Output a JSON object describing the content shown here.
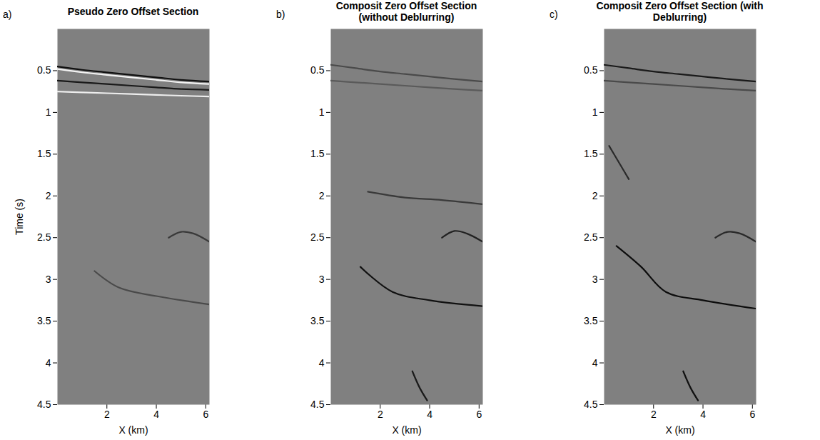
{
  "chart_data": [
    {
      "type": "line",
      "panel_label": "a)",
      "title": "Pseudo Zero Offset Section",
      "xlabel": "X (km)",
      "ylabel": "Time (s)",
      "color": "#808080",
      "xlim": [
        0,
        6.15
      ],
      "xticks": [
        2,
        4,
        6
      ],
      "ylim": [
        0,
        4.5
      ],
      "yticks": [
        0.5,
        1,
        1.5,
        2,
        2.5,
        3,
        3.5,
        4,
        4.5
      ],
      "series": [
        {
          "color": "#111111",
          "x": [
            0,
            1,
            2,
            3,
            4,
            5,
            6.15
          ],
          "values": [
            0.45,
            0.49,
            0.52,
            0.55,
            0.58,
            0.61,
            0.63
          ]
        },
        {
          "color": "#f2f2f2",
          "x": [
            0,
            1,
            2,
            3,
            4,
            5,
            6.15
          ],
          "values": [
            0.48,
            0.52,
            0.55,
            0.58,
            0.61,
            0.64,
            0.66
          ]
        },
        {
          "color": "#1a1a1a",
          "x": [
            0,
            1,
            2,
            3,
            4,
            5,
            6.15
          ],
          "values": [
            0.62,
            0.64,
            0.66,
            0.68,
            0.7,
            0.72,
            0.73
          ]
        },
        {
          "color": "#ededed",
          "x": [
            0,
            1,
            2,
            3,
            4,
            5,
            6.15
          ],
          "values": [
            0.75,
            0.76,
            0.77,
            0.78,
            0.79,
            0.8,
            0.81
          ]
        },
        {
          "color": "#3a3a3a",
          "x": [
            4.5,
            5,
            5.5,
            6.15
          ],
          "values": [
            2.5,
            2.43,
            2.45,
            2.55
          ]
        },
        {
          "color": "#4a4a4a",
          "x": [
            1.5,
            2.5,
            4,
            6.15
          ],
          "values": [
            2.9,
            3.1,
            3.2,
            3.3
          ]
        }
      ]
    },
    {
      "type": "line",
      "panel_label": "b)",
      "title": "Composit Zero Offset Section (without Deblurring)",
      "xlabel": "X (km)",
      "color": "#808080",
      "xlim": [
        0,
        6.15
      ],
      "xticks": [
        2,
        4,
        6
      ],
      "ylim": [
        0,
        4.5
      ],
      "yticks": [
        0.5,
        1,
        1.5,
        2,
        2.5,
        3,
        3.5,
        4,
        4.5
      ],
      "series": [
        {
          "color": "#4a4a4a",
          "x": [
            0,
            1,
            2,
            3,
            4,
            5,
            6.15
          ],
          "values": [
            0.43,
            0.47,
            0.51,
            0.54,
            0.57,
            0.6,
            0.63
          ]
        },
        {
          "color": "#5a5a5a",
          "x": [
            0,
            1,
            2,
            3,
            4,
            5,
            6.15
          ],
          "values": [
            0.62,
            0.64,
            0.66,
            0.68,
            0.7,
            0.72,
            0.74
          ]
        },
        {
          "color": "#3a3a3a",
          "x": [
            1.5,
            3,
            4.5,
            6.15
          ],
          "values": [
            1.95,
            2.02,
            2.05,
            2.1
          ]
        },
        {
          "color": "#222222",
          "x": [
            4.5,
            5,
            5.5,
            6.15
          ],
          "values": [
            2.5,
            2.42,
            2.45,
            2.55
          ]
        },
        {
          "color": "#111111",
          "x": [
            1.2,
            2.5,
            4,
            6.15
          ],
          "values": [
            2.85,
            3.15,
            3.25,
            3.32
          ]
        },
        {
          "color": "#1a1a1a",
          "x": [
            3.3,
            3.6,
            3.9
          ],
          "values": [
            4.1,
            4.3,
            4.45
          ]
        }
      ]
    },
    {
      "type": "line",
      "panel_label": "c)",
      "title": "Composit Zero Offset Section (with Deblurring)",
      "xlabel": "X (km)",
      "color": "#808080",
      "xlim": [
        0,
        6.15
      ],
      "xticks": [
        2,
        4,
        6
      ],
      "ylim": [
        0,
        4.5
      ],
      "yticks": [
        0.5,
        1,
        1.5,
        2,
        2.5,
        3,
        3.5,
        4,
        4.5
      ],
      "series": [
        {
          "color": "#1a1a1a",
          "x": [
            0,
            1,
            2,
            3,
            4,
            5,
            6.15
          ],
          "values": [
            0.43,
            0.47,
            0.51,
            0.54,
            0.57,
            0.6,
            0.63
          ]
        },
        {
          "color": "#4a4a4a",
          "x": [
            0,
            1,
            2,
            3,
            4,
            5,
            6.15
          ],
          "values": [
            0.62,
            0.64,
            0.66,
            0.68,
            0.7,
            0.72,
            0.74
          ]
        },
        {
          "color": "#2a2a2a",
          "x": [
            0.2,
            0.6,
            1
          ],
          "values": [
            1.4,
            1.6,
            1.8
          ]
        },
        {
          "color": "#2a2a2a",
          "x": [
            4.5,
            5,
            5.5,
            6.15
          ],
          "values": [
            2.5,
            2.43,
            2.45,
            2.55
          ]
        },
        {
          "color": "#0d0d0d",
          "x": [
            0.5,
            1.5,
            2.5,
            4,
            6.15
          ],
          "values": [
            2.6,
            2.85,
            3.15,
            3.25,
            3.35
          ]
        },
        {
          "color": "#111111",
          "x": [
            3.2,
            3.5,
            3.8
          ],
          "values": [
            4.1,
            4.3,
            4.45
          ]
        }
      ]
    }
  ]
}
